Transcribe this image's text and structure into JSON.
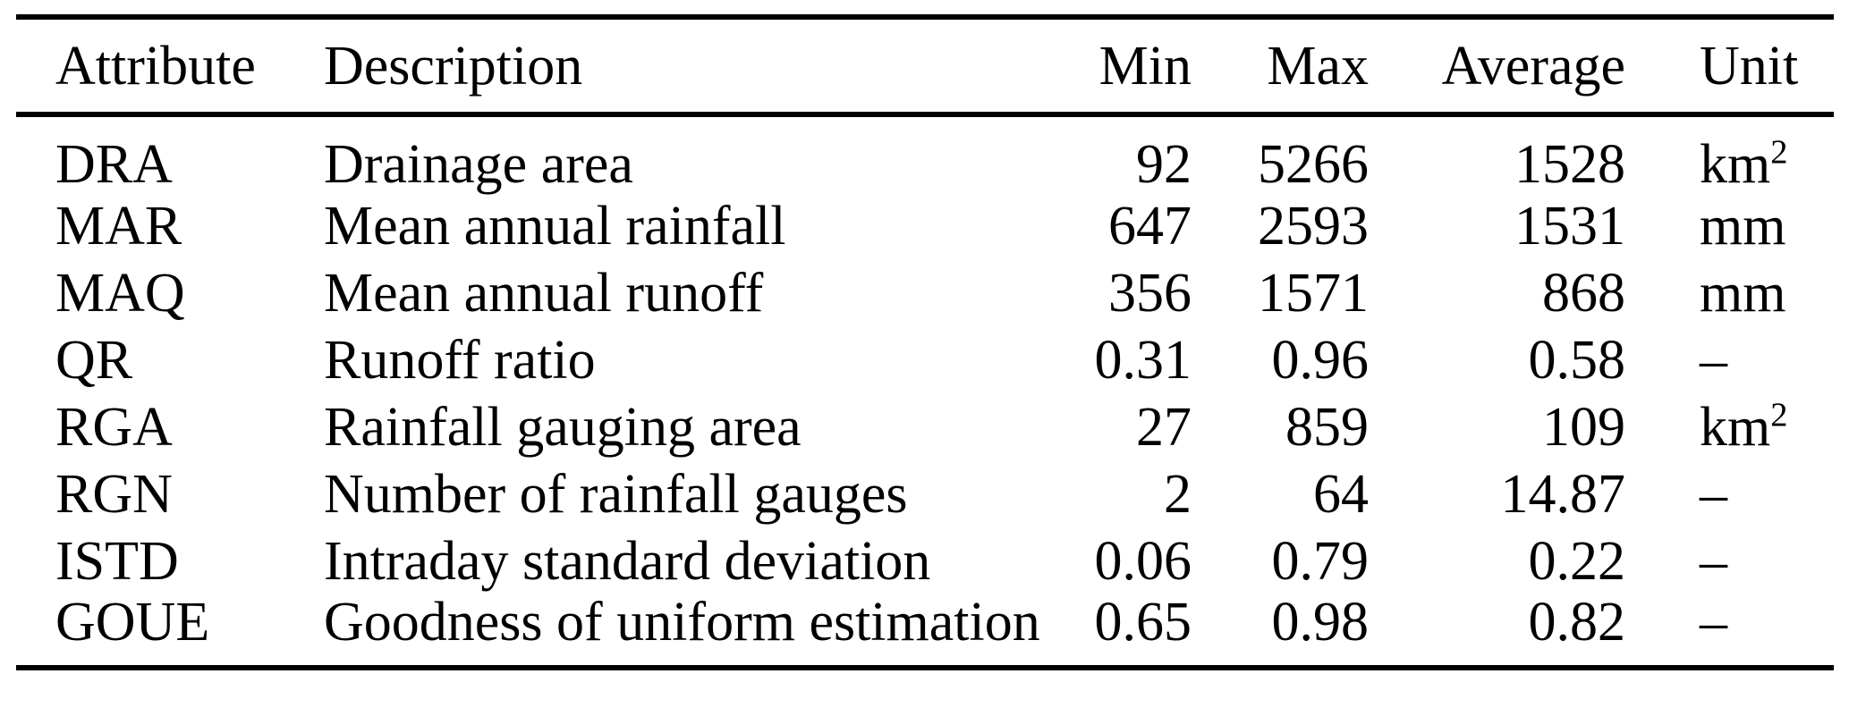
{
  "colors": {
    "text": "#000000",
    "rule": "#000000",
    "background": "#ffffff"
  },
  "table": {
    "headers": {
      "attribute": "Attribute",
      "description": "Description",
      "min": "Min",
      "max": "Max",
      "average": "Average",
      "unit": "Unit"
    },
    "rows": [
      {
        "attribute": "DRA",
        "description": "Drainage area",
        "min": "92",
        "max": "5266",
        "average": "1528",
        "unit": {
          "base": "km",
          "sup": "2"
        }
      },
      {
        "attribute": "MAR",
        "description": "Mean annual rainfall",
        "min": "647",
        "max": "2593",
        "average": "1531",
        "unit": {
          "base": "mm",
          "sup": ""
        }
      },
      {
        "attribute": "MAQ",
        "description": "Mean annual runoff",
        "min": "356",
        "max": "1571",
        "average": "868",
        "unit": {
          "base": "mm",
          "sup": ""
        }
      },
      {
        "attribute": "QR",
        "description": "Runoff ratio",
        "min": "0.31",
        "max": "0.96",
        "average": "0.58",
        "unit": {
          "base": "–",
          "sup": ""
        }
      },
      {
        "attribute": "RGA",
        "description": "Rainfall gauging area",
        "min": "27",
        "max": "859",
        "average": "109",
        "unit": {
          "base": "km",
          "sup": "2"
        }
      },
      {
        "attribute": "RGN",
        "description": "Number of rainfall gauges",
        "min": "2",
        "max": "64",
        "average": "14.87",
        "unit": {
          "base": "–",
          "sup": ""
        }
      },
      {
        "attribute": "ISTD",
        "description": "Intraday standard deviation",
        "min": "0.06",
        "max": "0.79",
        "average": "0.22",
        "unit": {
          "base": "–",
          "sup": ""
        }
      },
      {
        "attribute": "GOUE",
        "description": "Goodness of uniform estimation",
        "min": "0.65",
        "max": "0.98",
        "average": "0.82",
        "unit": {
          "base": "–",
          "sup": ""
        }
      }
    ]
  }
}
